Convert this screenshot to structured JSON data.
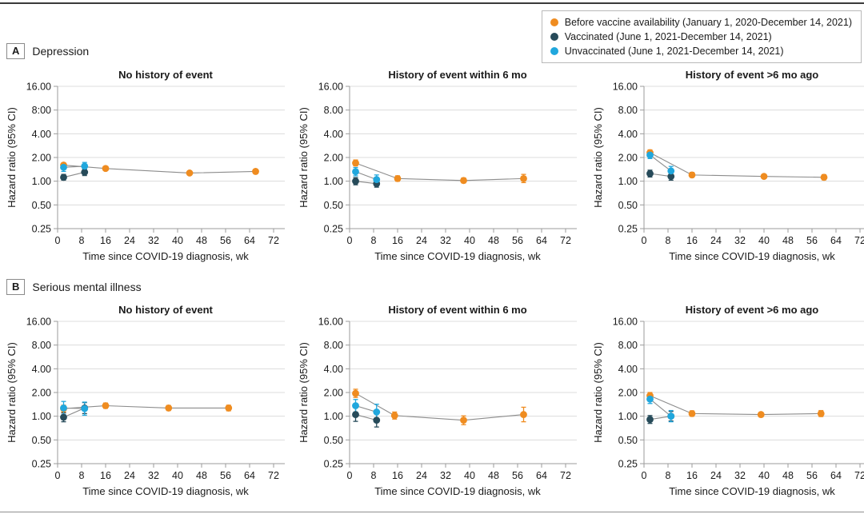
{
  "figure": {
    "style": {
      "grid_color": "#dcdcdc",
      "axis_color": "#9b9b9b",
      "connector_line_color": "#8c8c8c",
      "text_color": "#1a1a1a",
      "orange": "#EF8C20",
      "dark_slate": "#274B5A",
      "cyan": "#20A7DD"
    },
    "legend": {
      "items": [
        {
          "label": "Before vaccine availability (January 1, 2020-December 14, 2021)",
          "color": "#EF8C20"
        },
        {
          "label": "Vaccinated (June 1, 2021-December 14, 2021)",
          "color": "#274B5A"
        },
        {
          "label": "Unvaccinated (June 1, 2021-December 14, 2021)",
          "color": "#20A7DD"
        }
      ]
    },
    "panels": [
      {
        "letter": "A",
        "title": "Depression"
      },
      {
        "letter": "B",
        "title": "Serious mental illness"
      }
    ]
  },
  "chart_data": [
    {
      "type": "line",
      "panel": "A",
      "title": "No history of event",
      "xlabel": "Time since COVID-19 diagnosis, wk",
      "ylabel": "Hazard ratio (95% CI)",
      "xlim": [
        0,
        72
      ],
      "ylim": [
        0.25,
        16
      ],
      "yscale": "log2",
      "grid": true,
      "xticks": [
        0,
        8,
        16,
        24,
        32,
        40,
        48,
        56,
        64,
        72
      ],
      "ytick_values": [
        16,
        8,
        4,
        2,
        1,
        0.5,
        0.25
      ],
      "ytick_labels": [
        "16.00",
        "8:00",
        "4.00",
        "2.00",
        "1.00",
        "0.50",
        "0.25"
      ],
      "series": [
        {
          "name": "Before vaccine availability",
          "color": "#EF8C20",
          "x": [
            2,
            16,
            44,
            66
          ],
          "y": [
            1.6,
            1.45,
            1.27,
            1.33
          ],
          "lo": [
            1.5,
            1.38,
            1.2,
            1.25
          ],
          "hi": [
            1.71,
            1.52,
            1.35,
            1.42
          ]
        },
        {
          "name": "Vaccinated",
          "color": "#274B5A",
          "x": [
            2,
            9
          ],
          "y": [
            1.12,
            1.3
          ],
          "lo": [
            1.03,
            1.18
          ],
          "hi": [
            1.22,
            1.43
          ]
        },
        {
          "name": "Unvaccinated",
          "color": "#20A7DD",
          "x": [
            2,
            9
          ],
          "y": [
            1.5,
            1.55
          ],
          "lo": [
            1.33,
            1.39
          ],
          "hi": [
            1.69,
            1.73
          ]
        }
      ]
    },
    {
      "type": "line",
      "panel": "A",
      "title": "History of event within 6 mo",
      "xlabel": "Time since COVID-19 diagnosis, wk",
      "ylabel": "Hazard ratio (95% CI)",
      "xlim": [
        0,
        72
      ],
      "ylim": [
        0.25,
        16
      ],
      "yscale": "log2",
      "grid": true,
      "xticks": [
        0,
        8,
        16,
        24,
        32,
        40,
        48,
        56,
        64,
        72
      ],
      "ytick_values": [
        16,
        8,
        4,
        2,
        1,
        0.5,
        0.25
      ],
      "ytick_labels": [
        "16.00",
        "8.00",
        "4.00",
        "2.00",
        "1.00",
        "0.50",
        "0.25"
      ],
      "series": [
        {
          "name": "Before vaccine availability",
          "color": "#EF8C20",
          "x": [
            2,
            16,
            38,
            58
          ],
          "y": [
            1.7,
            1.08,
            1.02,
            1.08
          ],
          "lo": [
            1.56,
            1.0,
            0.95,
            0.96
          ],
          "hi": [
            1.86,
            1.17,
            1.1,
            1.22
          ]
        },
        {
          "name": "Vaccinated",
          "color": "#274B5A",
          "x": [
            2,
            9
          ],
          "y": [
            1.0,
            0.93
          ],
          "lo": [
            0.9,
            0.84
          ],
          "hi": [
            1.11,
            1.03
          ]
        },
        {
          "name": "Unvaccinated",
          "color": "#20A7DD",
          "x": [
            2,
            9
          ],
          "y": [
            1.32,
            1.05
          ],
          "lo": [
            1.17,
            0.92
          ],
          "hi": [
            1.49,
            1.2
          ]
        }
      ]
    },
    {
      "type": "line",
      "panel": "A",
      "title": "History of event >6 mo ago",
      "xlabel": "Time since COVID-19 diagnosis, wk",
      "ylabel": "Hazard ratio (95% CI)",
      "xlim": [
        0,
        72
      ],
      "ylim": [
        0.25,
        16
      ],
      "yscale": "log2",
      "grid": true,
      "xticks": [
        0,
        8,
        16,
        24,
        32,
        40,
        48,
        56,
        64,
        72
      ],
      "ytick_values": [
        16,
        8,
        4,
        2,
        1,
        0.5,
        0.25
      ],
      "ytick_labels": [
        "16.00",
        "8.00",
        "4.00",
        "2.00",
        "1.00",
        "0.50",
        "0.25"
      ],
      "series": [
        {
          "name": "Before vaccine availability",
          "color": "#EF8C20",
          "x": [
            2,
            16,
            40,
            60
          ],
          "y": [
            2.3,
            1.2,
            1.15,
            1.12
          ],
          "lo": [
            2.12,
            1.12,
            1.08,
            1.04
          ],
          "hi": [
            2.5,
            1.29,
            1.22,
            1.21
          ]
        },
        {
          "name": "Vaccinated",
          "color": "#274B5A",
          "x": [
            2,
            9
          ],
          "y": [
            1.25,
            1.15
          ],
          "lo": [
            1.13,
            1.03
          ],
          "hi": [
            1.38,
            1.28
          ]
        },
        {
          "name": "Unvaccinated",
          "color": "#20A7DD",
          "x": [
            2,
            9
          ],
          "y": [
            2.15,
            1.35
          ],
          "lo": [
            1.94,
            1.18
          ],
          "hi": [
            2.38,
            1.54
          ]
        }
      ]
    },
    {
      "type": "line",
      "panel": "B",
      "title": "No history of event",
      "xlabel": "Time since COVID-19 diagnosis, wk",
      "ylabel": "Hazard ratio (95% CI)",
      "xlim": [
        0,
        72
      ],
      "ylim": [
        0.25,
        16
      ],
      "yscale": "log2",
      "grid": true,
      "xticks": [
        0,
        8,
        16,
        24,
        32,
        40,
        48,
        56,
        64,
        72
      ],
      "ytick_values": [
        16,
        8,
        4,
        2,
        1,
        0.5,
        0.25
      ],
      "ytick_labels": [
        "16.00",
        "8.00",
        "4.00",
        "2.00",
        "1.00",
        "0.50",
        "0.25"
      ],
      "series": [
        {
          "name": "Before vaccine availability",
          "color": "#EF8C20",
          "x": [
            2,
            16,
            37,
            57
          ],
          "y": [
            1.25,
            1.36,
            1.27,
            1.27
          ],
          "lo": [
            1.13,
            1.26,
            1.18,
            1.17
          ],
          "hi": [
            1.38,
            1.47,
            1.37,
            1.38
          ]
        },
        {
          "name": "Vaccinated",
          "color": "#274B5A",
          "x": [
            2,
            9
          ],
          "y": [
            0.97,
            1.27
          ],
          "lo": [
            0.85,
            1.08
          ],
          "hi": [
            1.1,
            1.49
          ]
        },
        {
          "name": "Unvaccinated",
          "color": "#20A7DD",
          "x": [
            2,
            9
          ],
          "y": [
            1.27,
            1.25
          ],
          "lo": [
            1.05,
            1.03
          ],
          "hi": [
            1.54,
            1.51
          ]
        }
      ]
    },
    {
      "type": "line",
      "panel": "B",
      "title": "History of event within 6 mo",
      "xlabel": "Time since COVID-19 diagnosis, wk",
      "ylabel": "Hazard ratio (95% CI)",
      "xlim": [
        0,
        72
      ],
      "ylim": [
        0.25,
        16
      ],
      "yscale": "log2",
      "grid": true,
      "xticks": [
        0,
        8,
        16,
        24,
        32,
        40,
        48,
        56,
        64,
        72
      ],
      "ytick_values": [
        16,
        8,
        4,
        2,
        1,
        0.5,
        0.25
      ],
      "ytick_labels": [
        "16.00",
        "8.00",
        "4.00",
        "2.00",
        "1.00",
        "0.50",
        "0.25"
      ],
      "series": [
        {
          "name": "Before vaccine availability",
          "color": "#EF8C20",
          "x": [
            2,
            15,
            38,
            58
          ],
          "y": [
            1.95,
            1.02,
            0.89,
            1.05
          ],
          "lo": [
            1.73,
            0.92,
            0.78,
            0.85
          ],
          "hi": [
            2.2,
            1.13,
            1.01,
            1.3
          ]
        },
        {
          "name": "Vaccinated",
          "color": "#274B5A",
          "x": [
            2,
            9
          ],
          "y": [
            1.05,
            0.89
          ],
          "lo": [
            0.86,
            0.73
          ],
          "hi": [
            1.28,
            1.09
          ]
        },
        {
          "name": "Unvaccinated",
          "color": "#20A7DD",
          "x": [
            2,
            9
          ],
          "y": [
            1.36,
            1.13
          ],
          "lo": [
            1.13,
            0.9
          ],
          "hi": [
            1.63,
            1.42
          ]
        }
      ]
    },
    {
      "type": "line",
      "panel": "B",
      "title": "History of event >6 mo ago",
      "xlabel": "Time since COVID-19 diagnosis, wk",
      "ylabel": "Hazard ratio (95% CI)",
      "xlim": [
        0,
        72
      ],
      "ylim": [
        0.25,
        16
      ],
      "yscale": "log2",
      "grid": true,
      "xticks": [
        0,
        8,
        16,
        24,
        32,
        40,
        48,
        56,
        64,
        72
      ],
      "ytick_values": [
        16,
        8,
        4,
        2,
        1,
        0.5,
        0.25
      ],
      "ytick_labels": [
        "16.00",
        "8.00",
        "4.00",
        "2.00",
        "1.00",
        "0.50",
        "0.25"
      ],
      "series": [
        {
          "name": "Before vaccine availability",
          "color": "#EF8C20",
          "x": [
            2,
            16,
            39,
            59
          ],
          "y": [
            1.82,
            1.08,
            1.05,
            1.08
          ],
          "lo": [
            1.66,
            1.0,
            0.98,
            0.99
          ],
          "hi": [
            2.0,
            1.17,
            1.12,
            1.18
          ]
        },
        {
          "name": "Vaccinated",
          "color": "#274B5A",
          "x": [
            2,
            9
          ],
          "y": [
            0.91,
            1.0
          ],
          "lo": [
            0.81,
            0.87
          ],
          "hi": [
            1.02,
            1.15
          ]
        },
        {
          "name": "Unvaccinated",
          "color": "#20A7DD",
          "x": [
            2,
            9
          ],
          "y": [
            1.65,
            1.0
          ],
          "lo": [
            1.45,
            0.85
          ],
          "hi": [
            1.87,
            1.18
          ]
        }
      ]
    }
  ]
}
